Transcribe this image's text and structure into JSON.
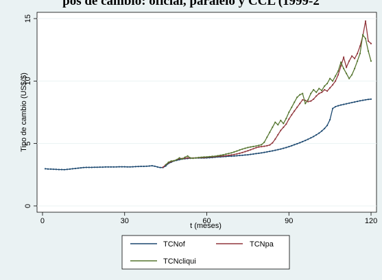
{
  "chart_data": {
    "type": "line",
    "title": "pos de cambio: oficial, paralelo y CCL (1999-2",
    "xlabel": "t (meses)",
    "ylabel": "Tipo de cambio (US$/$)",
    "xlim": [
      -2,
      122
    ],
    "ylim": [
      -0.5,
      15.5
    ],
    "x_ticks": [
      0,
      30,
      60,
      90,
      120
    ],
    "y_ticks": [
      0,
      5,
      10,
      15
    ],
    "grid": "horizontal",
    "legend_position": "bottom",
    "series": [
      {
        "name": "TCNof",
        "color": "#1a476f",
        "x": [
          1,
          2,
          3,
          4,
          5,
          6,
          7,
          8,
          9,
          10,
          11,
          12,
          13,
          14,
          15,
          16,
          17,
          18,
          19,
          20,
          21,
          22,
          23,
          24,
          25,
          26,
          27,
          28,
          29,
          30,
          31,
          32,
          33,
          34,
          35,
          36,
          37,
          38,
          39,
          40,
          41,
          42,
          43,
          44,
          45,
          46,
          47,
          48,
          49,
          50,
          51,
          52,
          53,
          54,
          55,
          56,
          57,
          58,
          59,
          60,
          61,
          62,
          63,
          64,
          65,
          66,
          67,
          68,
          69,
          70,
          71,
          72,
          73,
          74,
          75,
          76,
          77,
          78,
          79,
          80,
          81,
          82,
          83,
          84,
          85,
          86,
          87,
          88,
          89,
          90,
          91,
          92,
          93,
          94,
          95,
          96,
          97,
          98,
          99,
          100,
          101,
          102,
          103,
          104,
          105,
          106,
          107,
          108,
          109,
          110,
          111,
          112,
          113,
          114,
          115,
          116,
          117,
          118,
          119,
          120
        ],
        "values": [
          2.98,
          2.96,
          2.95,
          2.94,
          2.93,
          2.92,
          2.92,
          2.91,
          2.93,
          2.95,
          2.98,
          3.0,
          3.03,
          3.05,
          3.08,
          3.09,
          3.09,
          3.09,
          3.1,
          3.1,
          3.11,
          3.11,
          3.12,
          3.12,
          3.12,
          3.12,
          3.13,
          3.14,
          3.14,
          3.14,
          3.13,
          3.13,
          3.14,
          3.15,
          3.16,
          3.17,
          3.17,
          3.18,
          3.2,
          3.22,
          3.18,
          3.12,
          3.08,
          3.08,
          3.2,
          3.4,
          3.5,
          3.6,
          3.65,
          3.7,
          3.75,
          3.78,
          3.8,
          3.82,
          3.83,
          3.84,
          3.84,
          3.84,
          3.84,
          3.85,
          3.86,
          3.88,
          3.9,
          3.92,
          3.93,
          3.95,
          3.96,
          3.98,
          3.99,
          4.0,
          4.02,
          4.04,
          4.06,
          4.08,
          4.1,
          4.13,
          4.16,
          4.19,
          4.22,
          4.25,
          4.29,
          4.33,
          4.37,
          4.41,
          4.46,
          4.51,
          4.56,
          4.62,
          4.68,
          4.75,
          4.82,
          4.9,
          4.98,
          5.06,
          5.15,
          5.24,
          5.34,
          5.45,
          5.56,
          5.69,
          5.83,
          6.0,
          6.2,
          6.45,
          6.9,
          7.8,
          7.95,
          8.02,
          8.08,
          8.13,
          8.18,
          8.23,
          8.28,
          8.32,
          8.37,
          8.42,
          8.46,
          8.5,
          8.53,
          8.55
        ]
      },
      {
        "name": "TCNpa",
        "color": "#90353b",
        "x": [
          44,
          45,
          46,
          47,
          48,
          49,
          50,
          51,
          52,
          53,
          54,
          55,
          56,
          57,
          58,
          59,
          60,
          61,
          62,
          63,
          64,
          65,
          66,
          67,
          68,
          69,
          70,
          71,
          72,
          73,
          74,
          75,
          76,
          77,
          78,
          79,
          80,
          81,
          82,
          83,
          84,
          85,
          86,
          87,
          88,
          89,
          90,
          91,
          92,
          93,
          94,
          95,
          96,
          97,
          98,
          99,
          100,
          101,
          102,
          103,
          104,
          105,
          106,
          107,
          108,
          109,
          110,
          111,
          112,
          113,
          114,
          115,
          116,
          117,
          118,
          119,
          120
        ],
        "values": [
          3.1,
          3.3,
          3.45,
          3.55,
          3.62,
          3.7,
          3.78,
          3.8,
          3.82,
          3.85,
          3.83,
          3.84,
          3.85,
          3.86,
          3.87,
          3.88,
          3.9,
          3.92,
          3.93,
          3.95,
          3.97,
          3.99,
          4.0,
          4.02,
          4.05,
          4.08,
          4.12,
          4.17,
          4.22,
          4.28,
          4.35,
          4.42,
          4.5,
          4.58,
          4.66,
          4.72,
          4.75,
          4.78,
          4.82,
          4.88,
          5.05,
          5.35,
          5.7,
          6.05,
          6.3,
          6.55,
          6.95,
          7.3,
          7.6,
          7.9,
          8.2,
          8.5,
          8.45,
          8.35,
          8.4,
          8.55,
          8.8,
          9.0,
          9.1,
          9.3,
          9.2,
          9.45,
          9.7,
          10.0,
          10.5,
          11.2,
          11.9,
          11.1,
          11.6,
          12.0,
          11.8,
          12.2,
          12.8,
          13.6,
          14.8,
          13.2,
          13.0
        ]
      },
      {
        "name": "TCNcliqui",
        "color": "#55752f",
        "x": [
          45,
          46,
          47,
          48,
          49,
          50,
          51,
          52,
          53,
          54,
          55,
          56,
          57,
          58,
          59,
          60,
          61,
          62,
          63,
          64,
          65,
          66,
          67,
          68,
          69,
          70,
          71,
          72,
          73,
          74,
          75,
          76,
          77,
          78,
          79,
          80,
          81,
          82,
          83,
          84,
          85,
          86,
          87,
          88,
          89,
          90,
          91,
          92,
          93,
          94,
          95,
          96,
          97,
          98,
          99,
          100,
          101,
          102,
          103,
          104,
          105,
          106,
          107,
          108,
          109,
          110,
          111,
          112,
          113,
          114,
          115,
          116,
          117,
          118,
          119,
          120
        ],
        "values": [
          3.3,
          3.5,
          3.6,
          3.62,
          3.7,
          3.85,
          3.75,
          3.9,
          4.0,
          3.85,
          3.82,
          3.85,
          3.88,
          3.9,
          3.92,
          3.93,
          3.95,
          3.97,
          3.98,
          4.02,
          4.06,
          4.1,
          4.15,
          4.2,
          4.25,
          4.32,
          4.4,
          4.48,
          4.55,
          4.62,
          4.68,
          4.72,
          4.76,
          4.8,
          4.85,
          4.9,
          5.1,
          5.5,
          5.9,
          6.3,
          6.7,
          6.5,
          6.85,
          6.6,
          7.0,
          7.5,
          7.9,
          8.3,
          8.7,
          8.9,
          9.0,
          8.2,
          8.5,
          9.0,
          9.3,
          9.1,
          9.4,
          9.25,
          9.6,
          9.8,
          10.2,
          10.0,
          10.4,
          10.8,
          11.5,
          11.0,
          10.6,
          10.2,
          10.5,
          11.0,
          11.6,
          12.2,
          13.7,
          13.4,
          12.4,
          11.6
        ]
      }
    ]
  }
}
